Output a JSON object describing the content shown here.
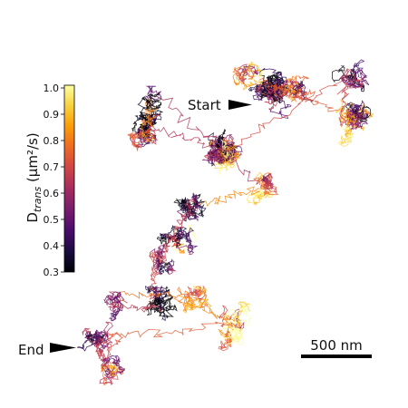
{
  "colorbar": {
    "label_main": "D",
    "label_sub": "trans",
    "label_unit": " (µm²/s)",
    "ticks": [
      "1.0",
      "0.9",
      "0.8",
      "0.7",
      "0.6",
      "0.5",
      "0.4",
      "0.3"
    ],
    "range": [
      0.3,
      1.0
    ],
    "colormap": "inferno",
    "stops": [
      "#000004",
      "#1b0c41",
      "#4a0c6b",
      "#781c6d",
      "#a52c60",
      "#cf4446",
      "#ed6925",
      "#fb9b06",
      "#f7d13d",
      "#fcffa4"
    ]
  },
  "annotations": {
    "start_label": "Start",
    "end_label": "End"
  },
  "scale_bar": {
    "label": "500 nm"
  },
  "trajectory": {
    "line_opacity": 0.85
  }
}
